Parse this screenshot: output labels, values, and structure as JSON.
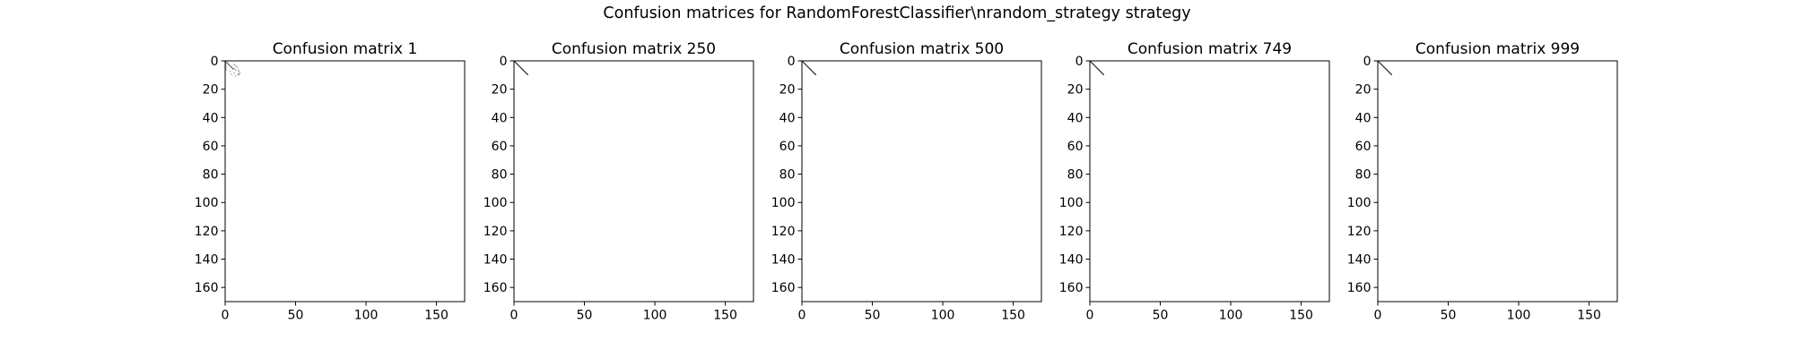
{
  "figure": {
    "suptitle": "Confusion matrices for RandomForestClassifier\\nrandom_strategy strategy"
  },
  "chart_data": [
    {
      "type": "heatmap",
      "title": "Confusion matrix 1",
      "xlim": [
        0,
        170
      ],
      "ylim": [
        170,
        0
      ],
      "xticks": [
        0,
        50,
        100,
        150
      ],
      "yticks": [
        0,
        20,
        40,
        60,
        80,
        100,
        120,
        140,
        160
      ],
      "nonzero_cells": [
        [
          0,
          0
        ],
        [
          1,
          0
        ],
        [
          2,
          0
        ],
        [
          3,
          0
        ],
        [
          4,
          0
        ],
        [
          5,
          0
        ],
        [
          6,
          0
        ],
        [
          1,
          1
        ],
        [
          2,
          2
        ],
        [
          3,
          3
        ],
        [
          4,
          4
        ],
        [
          5,
          5
        ],
        [
          2,
          6
        ],
        [
          3,
          7
        ],
        [
          4,
          8
        ],
        [
          5,
          6
        ],
        [
          6,
          7
        ],
        [
          6,
          9
        ],
        [
          7,
          3
        ],
        [
          7,
          9
        ],
        [
          8,
          6
        ],
        [
          8,
          10
        ],
        [
          9,
          4
        ],
        [
          9,
          9
        ],
        [
          10,
          7
        ]
      ]
    },
    {
      "type": "heatmap",
      "title": "Confusion matrix 250",
      "xlim": [
        0,
        170
      ],
      "ylim": [
        170,
        0
      ],
      "xticks": [
        0,
        50,
        100,
        150
      ],
      "yticks": [
        0,
        20,
        40,
        60,
        80,
        100,
        120,
        140,
        160
      ],
      "diagonal_extent": 10
    },
    {
      "type": "heatmap",
      "title": "Confusion matrix 500",
      "xlim": [
        0,
        170
      ],
      "ylim": [
        170,
        0
      ],
      "xticks": [
        0,
        50,
        100,
        150
      ],
      "yticks": [
        0,
        20,
        40,
        60,
        80,
        100,
        120,
        140,
        160
      ],
      "diagonal_extent": 10
    },
    {
      "type": "heatmap",
      "title": "Confusion matrix 749",
      "xlim": [
        0,
        170
      ],
      "ylim": [
        170,
        0
      ],
      "xticks": [
        0,
        50,
        100,
        150
      ],
      "yticks": [
        0,
        20,
        40,
        60,
        80,
        100,
        120,
        140,
        160
      ],
      "diagonal_extent": 10
    },
    {
      "type": "heatmap",
      "title": "Confusion matrix 999",
      "xlim": [
        0,
        170
      ],
      "ylim": [
        170,
        0
      ],
      "xticks": [
        0,
        50,
        100,
        150
      ],
      "yticks": [
        0,
        20,
        40,
        60,
        80,
        100,
        120,
        140,
        160
      ],
      "diagonal_extent": 10
    }
  ]
}
